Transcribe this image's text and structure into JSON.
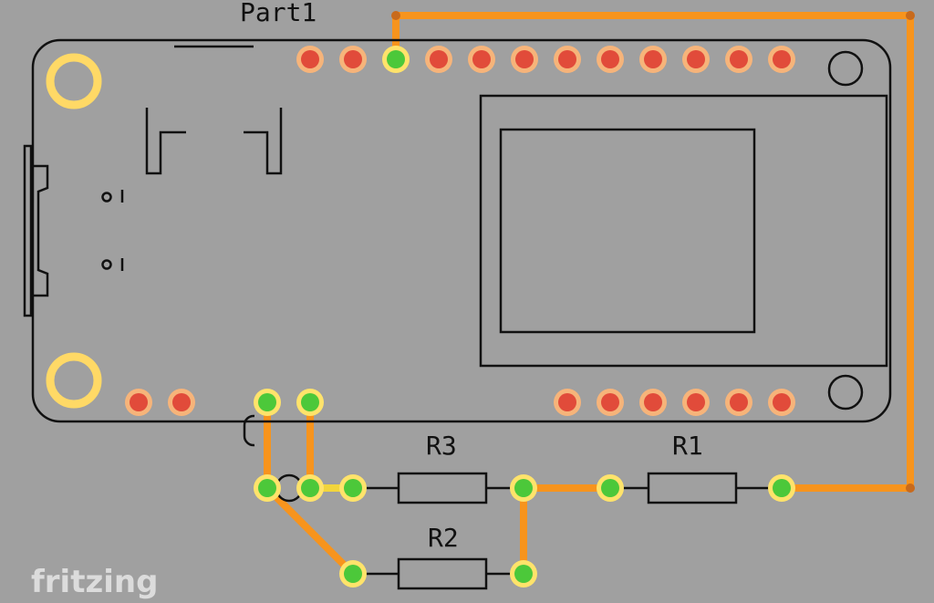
{
  "board": {
    "label": "Part1"
  },
  "components": {
    "r1": {
      "label": "R1"
    },
    "r2": {
      "label": "R2"
    },
    "r3": {
      "label": "R3"
    }
  },
  "watermark": "fritzing",
  "colors": {
    "background": "#a0a0a0",
    "silkscreen": "#111111",
    "trace": "#f7941d",
    "jumper_trace": "#f2d53c",
    "pad_unconnected_fill": "#e14b3a",
    "pad_unconnected_ring": "#f6b47a",
    "pad_connected_fill": "#4cc83a",
    "pad_connected_ring": "#ffe36b",
    "mount_hole_ring": "#ffd966",
    "bend_point": "#c86a1c",
    "watermark": "#dcdcdc"
  },
  "icons": {
    "logo": "fritzing-logo"
  }
}
